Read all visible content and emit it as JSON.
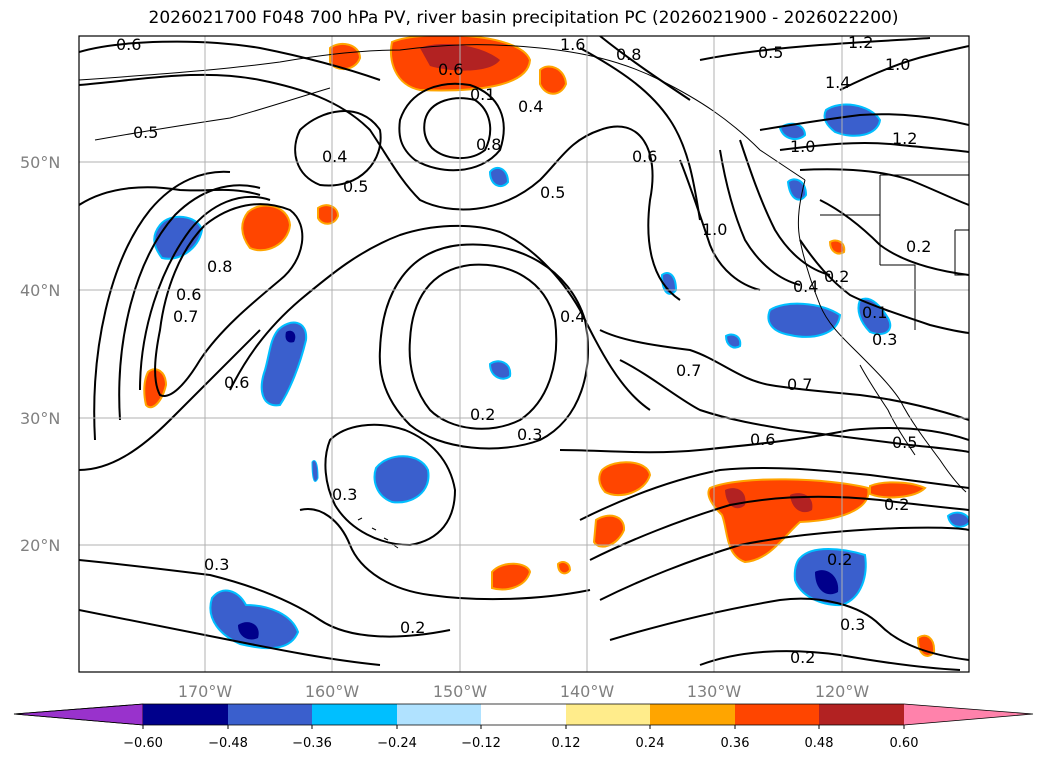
{
  "title": "2026021700 F048 700 hPa PV, river basin precipitation PC (2026021900 - 2026022200)",
  "map": {
    "lat_labels": [
      "50°N",
      "40°N",
      "30°N",
      "20°N"
    ],
    "lon_labels": [
      "170°W",
      "160°W",
      "150°W",
      "140°W",
      "130°W",
      "120°W"
    ],
    "contour_labels": [
      "0.6",
      "0.5",
      "0.4",
      "0.5",
      "0.6",
      "0.1",
      "0.8",
      "0.4",
      "0.5",
      "0.6",
      "1.0",
      "0.8",
      "0.7",
      "0.6",
      "0.4",
      "0.2",
      "0.3",
      "0.3",
      "0.3",
      "0.2",
      "0.2",
      "0.7",
      "0.6",
      "0.7",
      "0.5",
      "0.2",
      "0.2",
      "0.3",
      "0.2",
      "0.4",
      "0.2",
      "0.3",
      "0.5",
      "1.2",
      "1.0",
      "1.4",
      "1.2",
      "1.0",
      "0.8",
      "1.6",
      "0.1",
      "0.6"
    ]
  },
  "colorbar": {
    "tick_labels": [
      "−0.60",
      "−0.48",
      "−0.36",
      "−0.24",
      "−0.12",
      "0.12",
      "0.24",
      "0.36",
      "0.48",
      "0.60"
    ],
    "colors": [
      "#9932cc",
      "#00008b",
      "#3a5fcd",
      "#00bfff",
      "#b0e2ff",
      "#ffffff",
      "#ffec8b",
      "#ffa500",
      "#ff4500",
      "#b22222",
      "#ff82ab"
    ]
  }
}
